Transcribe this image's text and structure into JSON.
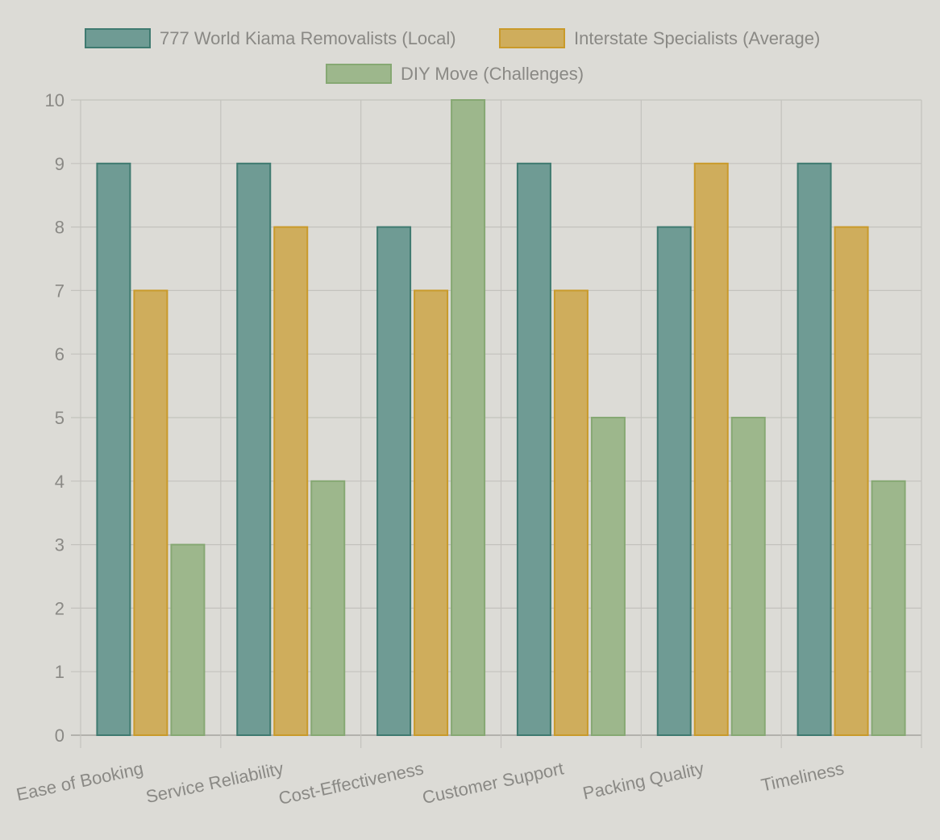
{
  "chart_data": {
    "type": "bar",
    "title": "",
    "xlabel": "",
    "ylabel": "",
    "categories": [
      "Ease of Booking",
      "Service Reliability",
      "Cost-Effectiveness",
      "Customer Support",
      "Packing Quality",
      "Timeliness"
    ],
    "series": [
      {
        "name": "777 World Kiama Removalists (Local)",
        "values": [
          9,
          9,
          8,
          9,
          8,
          9
        ],
        "fill": "#6f9b94",
        "stroke": "#3f7a70"
      },
      {
        "name": "Interstate Specialists (Average)",
        "values": [
          7,
          8,
          7,
          7,
          9,
          8
        ],
        "fill": "#cfad5c",
        "stroke": "#c99a2a"
      },
      {
        "name": "DIY Move (Challenges)",
        "values": [
          3,
          4,
          10,
          5,
          5,
          4
        ],
        "fill": "#9db78c",
        "stroke": "#86a873"
      }
    ],
    "ylim": [
      0,
      10
    ],
    "yticks": [
      "0",
      "1",
      "2",
      "3",
      "4",
      "5",
      "6",
      "7",
      "8",
      "9",
      "10"
    ],
    "grid": true,
    "legend": "top"
  }
}
